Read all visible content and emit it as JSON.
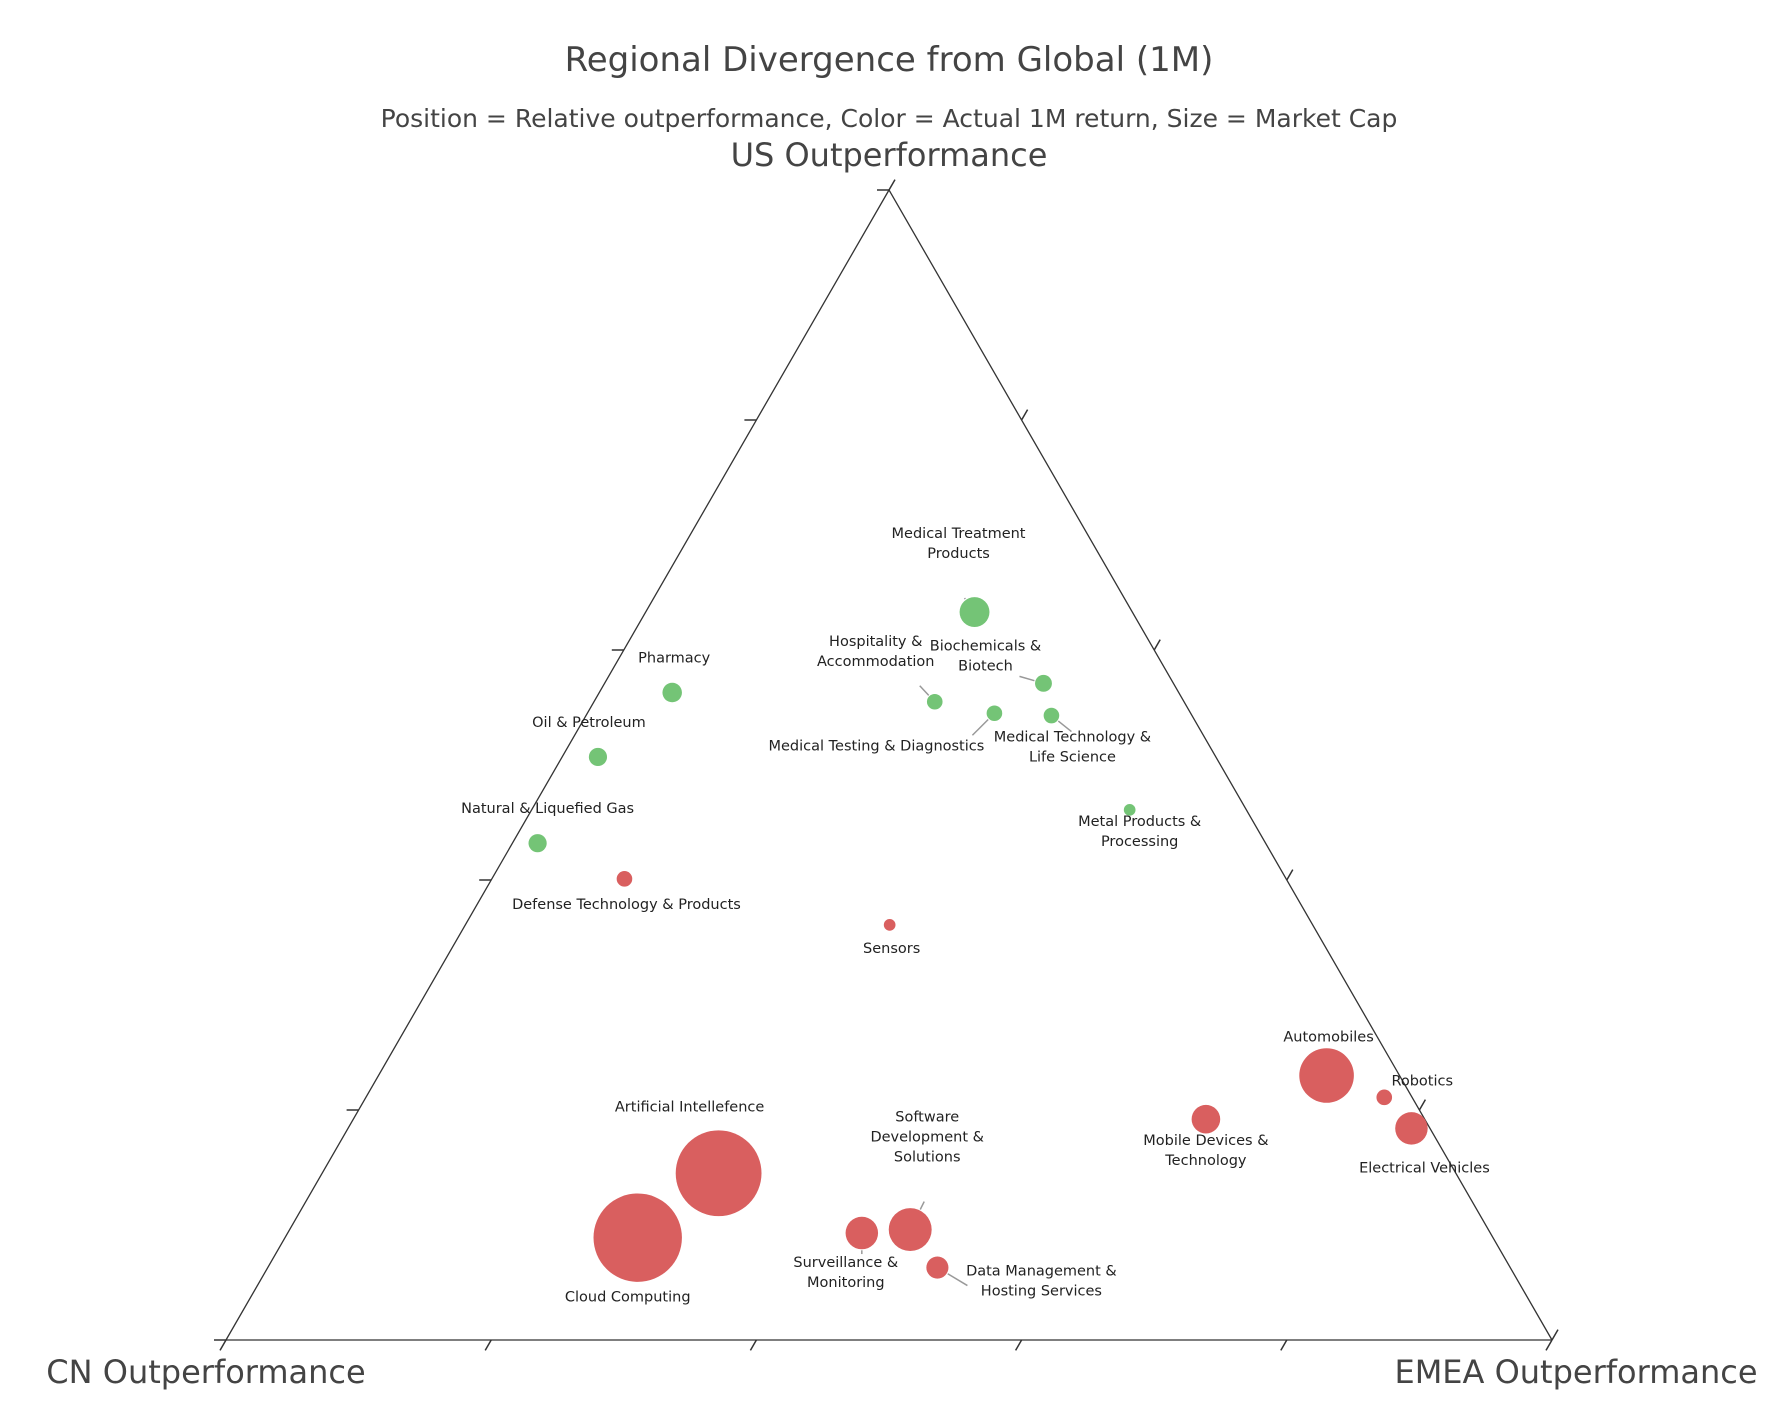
{
  "chart_data": {
    "type": "ternary-scatter",
    "title": "Regional Divergence from Global (1M)",
    "subtitle": "Position = Relative outperformance, Color = Actual 1M return, Size = Market Cap",
    "axes": {
      "top": "US Outperformance",
      "left": "CN Outperformance",
      "right": "EMEA Outperformance"
    },
    "ticks_per_axis": 5,
    "colors": {
      "positive": "#74c476",
      "negative": "#d95f5f",
      "leader": "#999999"
    },
    "points": [
      {
        "label": "Medical Treatment\nProducts",
        "us": 0.633,
        "cn": 0.119,
        "emea": 0.248,
        "size": 2.3,
        "sign": "positive"
      },
      {
        "label": "Biochemicals &\nBiotech",
        "us": 0.571,
        "cn": 0.098,
        "emea": 0.331,
        "size": 1.3,
        "sign": "positive"
      },
      {
        "label": "Hospitality &\nAccommodation",
        "us": 0.555,
        "cn": 0.188,
        "emea": 0.257,
        "size": 1.2,
        "sign": "positive"
      },
      {
        "label": "Medical Testing & Diagnostics",
        "us": 0.545,
        "cn": 0.148,
        "emea": 0.307,
        "size": 1.2,
        "sign": "positive"
      },
      {
        "label": "Medical Technology &\nLife Science",
        "us": 0.543,
        "cn": 0.106,
        "emea": 0.351,
        "size": 1.2,
        "sign": "positive"
      },
      {
        "label": "Pharmacy",
        "us": 0.563,
        "cn": 0.382,
        "emea": 0.055,
        "size": 1.5,
        "sign": "positive"
      },
      {
        "label": "Oil & Petroleum",
        "us": 0.507,
        "cn": 0.466,
        "emea": 0.027,
        "size": 1.4,
        "sign": "positive"
      },
      {
        "label": "Natural & Liquefied Gas",
        "us": 0.432,
        "cn": 0.549,
        "emea": 0.019,
        "size": 1.4,
        "sign": "positive"
      },
      {
        "label": "Metal Products &\nProcessing",
        "us": 0.461,
        "cn": 0.088,
        "emea": 0.451,
        "size": 0.9,
        "sign": "positive"
      },
      {
        "label": "Defense Technology & Products",
        "us": 0.401,
        "cn": 0.499,
        "emea": 0.1,
        "size": 1.2,
        "sign": "negative"
      },
      {
        "label": "Sensors",
        "us": 0.361,
        "cn": 0.319,
        "emea": 0.32,
        "size": 0.9,
        "sign": "negative"
      },
      {
        "label": "Automobiles",
        "us": 0.23,
        "cn": 0.055,
        "emea": 0.715,
        "size": 4.2,
        "sign": "negative"
      },
      {
        "label": "Robotics",
        "us": 0.211,
        "cn": 0.021,
        "emea": 0.768,
        "size": 1.2,
        "sign": "negative"
      },
      {
        "label": "Electrical Vehicles",
        "us": 0.184,
        "cn": 0.014,
        "emea": 0.802,
        "size": 2.5,
        "sign": "negative"
      },
      {
        "label": "Mobile Devices &\nTechnology",
        "us": 0.192,
        "cn": 0.165,
        "emea": 0.643,
        "size": 2.2,
        "sign": "negative"
      },
      {
        "label": "Artificial Intellefence",
        "us": 0.145,
        "cn": 0.556,
        "emea": 0.299,
        "size": 6.6,
        "sign": "negative"
      },
      {
        "label": "Cloud Computing",
        "us": 0.089,
        "cn": 0.645,
        "emea": 0.266,
        "size": 6.8,
        "sign": "negative"
      },
      {
        "label": "Software\nDevelopment &\nSolutions",
        "us": 0.096,
        "cn": 0.436,
        "emea": 0.468,
        "size": 3.3,
        "sign": "negative"
      },
      {
        "label": "Surveillance &\nMonitoring",
        "us": 0.093,
        "cn": 0.474,
        "emea": 0.433,
        "size": 2.5,
        "sign": "negative"
      },
      {
        "label": "Data Management &\nHosting Services",
        "us": 0.063,
        "cn": 0.432,
        "emea": 0.505,
        "size": 1.7,
        "sign": "negative"
      }
    ]
  }
}
